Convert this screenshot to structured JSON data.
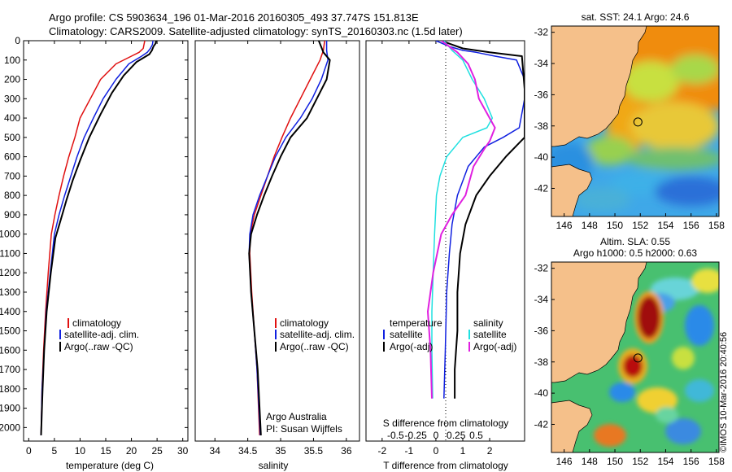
{
  "header": {
    "line1": "Argo profile: CS 5903634_196 01-Mar-2016 20160305_493 37.747S 151.813E",
    "line2": "Climatology: CARS2009. Satellite-adjusted climatology: synTS_20160303.nc (1.5d later)"
  },
  "colors": {
    "climatology": "#e01010",
    "satellite": "#1020e0",
    "argo": "#000000",
    "sat_salinity": "#20e0e0",
    "argo_salinity": "#e020e0",
    "land": "#f5c08a"
  },
  "depth_axis": {
    "ticks": [
      0,
      100,
      200,
      300,
      400,
      500,
      600,
      700,
      800,
      900,
      1000,
      1100,
      1200,
      1300,
      1400,
      1500,
      1600,
      1700,
      1800,
      1900,
      2000
    ],
    "ylim": [
      0,
      2070
    ]
  },
  "chart_data": [
    {
      "type": "line",
      "id": "temperature",
      "xlabel": "temperature (deg C)",
      "xlim": [
        -1,
        31
      ],
      "xticks": [
        0,
        5,
        10,
        15,
        20,
        25,
        30
      ],
      "legend": [
        "climatology",
        "satellite-adj. clim.",
        "Argo(..raw -QC)"
      ],
      "series": [
        {
          "name": "climatology",
          "color": "#e01010",
          "width": 1.5,
          "x": [
            22.6,
            22.3,
            21.5,
            20.0,
            17.0,
            14.0,
            12.0,
            10.0,
            9.0,
            7.8,
            6.8,
            5.9,
            5.1,
            4.4,
            3.8,
            3.3,
            2.9,
            2.6,
            2.4
          ],
          "y": [
            0,
            40,
            60,
            80,
            120,
            200,
            300,
            400,
            500,
            600,
            700,
            800,
            900,
            1000,
            1200,
            1400,
            1600,
            1800,
            2040
          ]
        },
        {
          "name": "satellite-adj. clim.",
          "color": "#1020e0",
          "width": 1.5,
          "x": [
            24.2,
            24.1,
            23.7,
            23.1,
            22.0,
            19.5,
            17.0,
            14.5,
            12.6,
            10.8,
            9.4,
            8.2,
            7.0,
            5.9,
            5.0,
            4.2,
            3.4,
            3.0,
            2.6,
            2.4
          ],
          "y": [
            0,
            20,
            40,
            60,
            80,
            120,
            200,
            300,
            400,
            500,
            600,
            700,
            800,
            900,
            1000,
            1200,
            1400,
            1600,
            1800,
            2040
          ]
        },
        {
          "name": "Argo(..raw -QC)",
          "color": "#000000",
          "width": 2,
          "x": [
            24.8,
            24.7,
            24.3,
            24.0,
            23.5,
            21.0,
            18.5,
            16.2,
            14.0,
            11.8,
            10.0,
            8.6,
            7.4,
            6.3,
            5.2,
            4.3,
            3.5,
            3.0,
            2.7,
            2.4
          ],
          "y": [
            0,
            15,
            30,
            50,
            70,
            110,
            180,
            270,
            380,
            500,
            620,
            720,
            820,
            920,
            1020,
            1200,
            1400,
            1600,
            1800,
            2040
          ]
        }
      ]
    },
    {
      "type": "line",
      "id": "salinity",
      "xlabel": "salinity",
      "xlim": [
        33.7,
        36.2
      ],
      "xticks": [
        34,
        34.5,
        35,
        35.5,
        36
      ],
      "legend": [
        "climatology",
        "satellite-adj. clim.",
        "Argo(..raw -QC)"
      ],
      "annotation": [
        "Argo Australia",
        "PI: Susan Wijffels"
      ],
      "series": [
        {
          "name": "climatology",
          "color": "#e01010",
          "width": 1.5,
          "x": [
            35.67,
            35.65,
            35.6,
            35.45,
            35.3,
            35.15,
            35.02,
            34.9,
            34.8,
            34.7,
            34.6,
            34.54,
            34.53,
            34.56,
            34.6,
            34.64,
            34.68
          ],
          "y": [
            0,
            50,
            100,
            200,
            300,
            400,
            500,
            600,
            700,
            800,
            900,
            1000,
            1100,
            1300,
            1500,
            1700,
            2040
          ]
        },
        {
          "name": "satellite-adj. clim.",
          "color": "#1020e0",
          "width": 1.5,
          "x": [
            35.7,
            35.7,
            35.72,
            35.62,
            35.48,
            35.3,
            35.08,
            34.92,
            34.8,
            34.68,
            34.58,
            34.53,
            34.52,
            34.55,
            34.6,
            34.64,
            34.69
          ],
          "y": [
            0,
            50,
            100,
            200,
            300,
            400,
            500,
            600,
            700,
            800,
            900,
            1000,
            1100,
            1300,
            1500,
            1700,
            2040
          ]
        },
        {
          "name": "Argo(..raw -QC)",
          "color": "#000000",
          "width": 2,
          "x": [
            35.58,
            35.65,
            35.75,
            35.7,
            35.55,
            35.4,
            35.15,
            35.0,
            34.87,
            34.75,
            34.64,
            34.55,
            34.52,
            34.55,
            34.6,
            34.65,
            34.7
          ],
          "y": [
            0,
            60,
            100,
            200,
            300,
            400,
            500,
            600,
            700,
            800,
            900,
            1000,
            1100,
            1300,
            1500,
            1700,
            2040
          ]
        }
      ]
    },
    {
      "type": "line",
      "id": "difference",
      "xlabel": "T difference from climatology",
      "xlabel_top": "S difference from climatology",
      "xlim": [
        -2.6,
        3.3
      ],
      "xticks_T": [
        -2,
        -1,
        0,
        1,
        2
      ],
      "xticks_S": [
        -0.5,
        -0.25,
        0,
        0.25,
        0.5
      ],
      "legend_T": [
        "temperature",
        "satellite",
        "Argo(-adj)"
      ],
      "legend_S": [
        "salinity",
        "satellite",
        "Argo(-adj)"
      ],
      "series": [
        {
          "name": "temperature satellite",
          "color": "#1020e0",
          "width": 1.5,
          "x": [
            0,
            0.5,
            1.0,
            1.5,
            2.2,
            3.0,
            3.3,
            3.3,
            3.1,
            2.5,
            1.8,
            1.2,
            0.8,
            0.6,
            0.5,
            0.4,
            0.35,
            0.3
          ],
          "y": [
            0,
            30,
            50,
            60,
            80,
            100,
            200,
            300,
            450,
            500,
            550,
            650,
            800,
            950,
            1100,
            1300,
            1600,
            1850
          ]
        },
        {
          "name": "temperature Argo(-adj)",
          "color": "#000000",
          "width": 2,
          "x": [
            0.2,
            0.6,
            1.0,
            2.0,
            3.2,
            3.3,
            3.3,
            3.3,
            2.6,
            2.0,
            1.5,
            1.1,
            0.9,
            0.8,
            0.8,
            0.7,
            0.7
          ],
          "y": [
            0,
            20,
            40,
            60,
            80,
            250,
            300,
            500,
            600,
            700,
            800,
            950,
            1100,
            1300,
            1500,
            1700,
            1850
          ]
        },
        {
          "name": "salinity satellite",
          "color": "#20e0e0",
          "width": 1.5,
          "x": [
            0.3,
            0.6,
            1.0,
            1.35,
            1.8,
            2.1,
            1.9,
            1.0,
            0.4,
            0.15,
            0.02,
            -0.05,
            -0.1,
            -0.15,
            -0.15,
            -0.12
          ],
          "y": [
            0,
            50,
            100,
            200,
            300,
            400,
            450,
            500,
            600,
            700,
            800,
            1000,
            1200,
            1400,
            1600,
            1850
          ]
        },
        {
          "name": "salinity Argo(-adj)",
          "color": "#e020e0",
          "width": 2,
          "x": [
            0.2,
            0.8,
            1.2,
            1.45,
            1.6,
            2.2,
            2.0,
            1.8,
            1.4,
            1.1,
            0.6,
            0.2,
            -0.1,
            -0.3,
            -0.2,
            -0.15
          ],
          "y": [
            0,
            60,
            120,
            200,
            300,
            450,
            520,
            560,
            650,
            800,
            900,
            1000,
            1200,
            1400,
            1600,
            1850
          ]
        }
      ]
    }
  ],
  "map_sst": {
    "title": "sat. SST: 24.1  Argo: 24.6",
    "xticks": [
      146,
      148,
      150,
      152,
      154,
      156,
      158
    ],
    "yticks": [
      -32,
      -34,
      -36,
      -38,
      -40,
      -42
    ],
    "xlim": [
      145,
      158.2
    ],
    "ylim": [
      -43.8,
      -31.6
    ],
    "float": [
      151.813,
      -37.747
    ]
  },
  "map_sla": {
    "title1": "Altim. SLA: 0.55",
    "title2": "Argo h1000: 0.5 h2000: 0.63",
    "xticks": [
      146,
      148,
      150,
      152,
      154,
      156,
      158
    ],
    "yticks": [
      -32,
      -34,
      -36,
      -38,
      -40,
      -42
    ],
    "xlim": [
      145,
      158.2
    ],
    "ylim": [
      -43.8,
      -31.6
    ],
    "float": [
      151.813,
      -37.747
    ]
  },
  "credit": "©IMOS 10-Mar-2016 20:40:56"
}
